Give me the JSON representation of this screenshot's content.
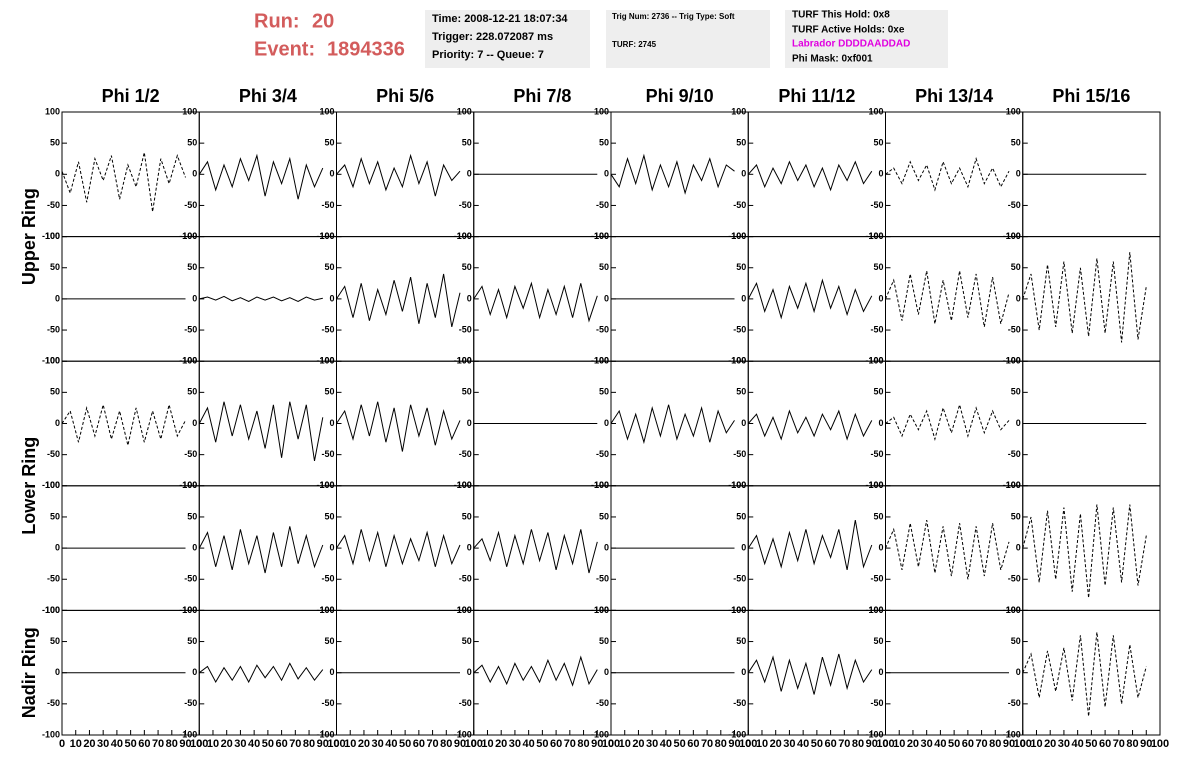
{
  "header": {
    "run_label": "Run:",
    "run": "20",
    "event_label": "Event:",
    "event": "1894336",
    "info_1": [
      "Time: 2008-12-21 18:07:34",
      "Trigger: 228.072087 ms",
      "Priority: 7 -- Queue: 7"
    ],
    "info_2": [
      "Trig Num: 2736 -- Trig Type: Soft",
      "TURF: 2745"
    ],
    "info_3": [
      "TURF This Hold: 0x8",
      "TURF Active Holds: 0xe",
      "Labrador DDDDAADDAD",
      "Phi Mask: 0xf001"
    ]
  },
  "chart_data": {
    "type": "waveform-grid",
    "columns": [
      "Phi 1/2",
      "Phi 3/4",
      "Phi 5/6",
      "Phi 7/8",
      "Phi 9/10",
      "Phi 11/12",
      "Phi 13/14",
      "Phi 15/16"
    ],
    "ring_labels": [
      "Upper Ring",
      "Lower Ring",
      "Nadir Ring"
    ],
    "xlim": [
      0,
      100
    ],
    "ylim": [
      -100,
      100
    ],
    "xticks": [
      0,
      10,
      20,
      30,
      40,
      50,
      60,
      70,
      80,
      90,
      100
    ],
    "yticks": [
      -100,
      -50,
      0,
      50,
      100
    ],
    "x": [
      0,
      6,
      12,
      18,
      24,
      30,
      36,
      42,
      48,
      54,
      60,
      66,
      72,
      78,
      84,
      90
    ],
    "panels": [
      [
        {
          "dashed": true,
          "values": [
            5,
            -30,
            20,
            -45,
            25,
            -10,
            30,
            -40,
            15,
            -20,
            35,
            -60,
            25,
            -15,
            30,
            -5
          ]
        },
        {
          "dashed": false,
          "values": [
            0,
            20,
            -25,
            15,
            -20,
            25,
            -10,
            30,
            -35,
            20,
            -15,
            25,
            -40,
            15,
            -20,
            10
          ]
        },
        {
          "dashed": false,
          "values": [
            0,
            15,
            -20,
            25,
            -15,
            20,
            -25,
            10,
            -20,
            30,
            -15,
            20,
            -35,
            15,
            -10,
            5
          ]
        },
        {
          "dashed": false,
          "values": [
            0,
            0,
            0,
            0,
            0,
            0,
            0,
            0,
            0,
            0,
            0,
            0,
            0,
            0,
            0,
            0
          ]
        },
        {
          "dashed": false,
          "values": [
            0,
            -20,
            25,
            -15,
            30,
            -25,
            15,
            -20,
            20,
            -30,
            15,
            -10,
            25,
            -20,
            15,
            5
          ]
        },
        {
          "dashed": false,
          "values": [
            0,
            15,
            -20,
            10,
            -15,
            20,
            -10,
            15,
            -20,
            10,
            -25,
            15,
            -10,
            20,
            -15,
            5
          ]
        },
        {
          "dashed": true,
          "values": [
            0,
            10,
            -15,
            20,
            -10,
            15,
            -25,
            20,
            -15,
            10,
            -20,
            25,
            -15,
            10,
            -20,
            5
          ]
        },
        {
          "dashed": false,
          "values": [
            0,
            0,
            0,
            0,
            0,
            0,
            0,
            0,
            0,
            0,
            0,
            0,
            0,
            0,
            0,
            0
          ]
        }
      ],
      [
        {
          "dashed": false,
          "values": [
            0,
            0,
            0,
            0,
            0,
            0,
            0,
            0,
            0,
            0,
            0,
            0,
            0,
            0,
            0,
            0
          ]
        },
        {
          "dashed": false,
          "values": [
            0,
            3,
            -2,
            4,
            -3,
            2,
            -4,
            3,
            -2,
            3,
            -3,
            2,
            -4,
            3,
            -2,
            1
          ]
        },
        {
          "dashed": false,
          "values": [
            0,
            20,
            -30,
            25,
            -35,
            15,
            -25,
            30,
            -20,
            35,
            -40,
            25,
            -30,
            40,
            -45,
            10
          ]
        },
        {
          "dashed": false,
          "values": [
            0,
            20,
            -25,
            15,
            -30,
            20,
            -15,
            25,
            -30,
            15,
            -25,
            20,
            -30,
            25,
            -35,
            5
          ]
        },
        {
          "dashed": false,
          "values": [
            0,
            0,
            0,
            0,
            0,
            0,
            0,
            0,
            0,
            0,
            0,
            0,
            0,
            0,
            0,
            0
          ]
        },
        {
          "dashed": false,
          "values": [
            0,
            25,
            -20,
            15,
            -30,
            20,
            -15,
            25,
            -20,
            30,
            -15,
            20,
            -25,
            15,
            -20,
            5
          ]
        },
        {
          "dashed": true,
          "values": [
            0,
            30,
            -35,
            40,
            -25,
            45,
            -40,
            30,
            -35,
            45,
            -30,
            40,
            -45,
            35,
            -40,
            10
          ]
        },
        {
          "dashed": true,
          "values": [
            0,
            40,
            -50,
            55,
            -45,
            60,
            -55,
            50,
            -60,
            65,
            -55,
            60,
            -70,
            75,
            -65,
            20
          ]
        }
      ],
      [
        {
          "dashed": true,
          "values": [
            0,
            20,
            -30,
            25,
            -20,
            30,
            -25,
            20,
            -35,
            25,
            -30,
            20,
            -25,
            30,
            -20,
            5
          ]
        },
        {
          "dashed": false,
          "values": [
            0,
            25,
            -30,
            35,
            -20,
            30,
            -25,
            20,
            -40,
            30,
            -55,
            35,
            -25,
            30,
            -60,
            10
          ]
        },
        {
          "dashed": false,
          "values": [
            0,
            20,
            -25,
            30,
            -20,
            35,
            -30,
            25,
            -45,
            30,
            -20,
            25,
            -35,
            20,
            -25,
            5
          ]
        },
        {
          "dashed": false,
          "values": [
            0,
            0,
            0,
            0,
            0,
            0,
            0,
            0,
            0,
            0,
            0,
            0,
            0,
            0,
            0,
            0
          ]
        },
        {
          "dashed": false,
          "values": [
            0,
            20,
            -25,
            15,
            -30,
            25,
            -20,
            30,
            -25,
            15,
            -20,
            25,
            -30,
            20,
            -15,
            5
          ]
        },
        {
          "dashed": false,
          "values": [
            0,
            15,
            -20,
            10,
            -25,
            20,
            -15,
            10,
            -20,
            15,
            -10,
            20,
            -25,
            15,
            -20,
            5
          ]
        },
        {
          "dashed": true,
          "values": [
            0,
            10,
            -20,
            15,
            -10,
            20,
            -25,
            25,
            -15,
            30,
            -20,
            25,
            -15,
            20,
            -10,
            5
          ]
        },
        {
          "dashed": false,
          "values": [
            0,
            0,
            0,
            0,
            0,
            0,
            0,
            0,
            0,
            0,
            0,
            0,
            0,
            0,
            0,
            0
          ]
        }
      ],
      [
        {
          "dashed": false,
          "values": [
            0,
            0,
            0,
            0,
            0,
            0,
            0,
            0,
            0,
            0,
            0,
            0,
            0,
            0,
            0,
            0
          ]
        },
        {
          "dashed": false,
          "values": [
            0,
            25,
            -30,
            20,
            -35,
            30,
            -25,
            20,
            -40,
            25,
            -30,
            35,
            -25,
            20,
            -30,
            5
          ]
        },
        {
          "dashed": false,
          "values": [
            0,
            20,
            -25,
            30,
            -20,
            25,
            -30,
            20,
            -25,
            15,
            -20,
            25,
            -30,
            20,
            -25,
            5
          ]
        },
        {
          "dashed": false,
          "values": [
            0,
            15,
            -20,
            25,
            -30,
            20,
            -25,
            30,
            -20,
            25,
            -35,
            20,
            -25,
            30,
            -40,
            10
          ]
        },
        {
          "dashed": false,
          "values": [
            0,
            0,
            0,
            0,
            0,
            0,
            0,
            0,
            0,
            0,
            0,
            0,
            0,
            0,
            0,
            0
          ]
        },
        {
          "dashed": false,
          "values": [
            0,
            20,
            -25,
            15,
            -30,
            25,
            -20,
            30,
            -25,
            20,
            -15,
            30,
            -35,
            45,
            -30,
            5
          ]
        },
        {
          "dashed": true,
          "values": [
            0,
            30,
            -35,
            40,
            -30,
            45,
            -40,
            35,
            -45,
            40,
            -50,
            35,
            -45,
            40,
            -35,
            10
          ]
        },
        {
          "dashed": true,
          "values": [
            0,
            50,
            -55,
            60,
            -50,
            65,
            -70,
            55,
            -80,
            70,
            -60,
            65,
            -55,
            70,
            -60,
            20
          ]
        }
      ],
      [
        {
          "dashed": false,
          "values": [
            0,
            0,
            0,
            0,
            0,
            0,
            0,
            0,
            0,
            0,
            0,
            0,
            0,
            0,
            0,
            0
          ]
        },
        {
          "dashed": false,
          "values": [
            0,
            10,
            -15,
            8,
            -12,
            10,
            -15,
            12,
            -8,
            10,
            -12,
            15,
            -10,
            8,
            -12,
            5
          ]
        },
        {
          "dashed": false,
          "values": [
            0,
            0,
            0,
            0,
            0,
            0,
            0,
            0,
            0,
            0,
            0,
            0,
            0,
            0,
            0,
            0
          ]
        },
        {
          "dashed": false,
          "values": [
            0,
            12,
            -15,
            10,
            -18,
            15,
            -12,
            10,
            -15,
            20,
            -12,
            15,
            -20,
            25,
            -18,
            5
          ]
        },
        {
          "dashed": false,
          "values": [
            0,
            0,
            0,
            0,
            0,
            0,
            0,
            0,
            0,
            0,
            0,
            0,
            0,
            0,
            0,
            0
          ]
        },
        {
          "dashed": false,
          "values": [
            0,
            20,
            -15,
            25,
            -30,
            20,
            -25,
            15,
            -35,
            25,
            -20,
            30,
            -25,
            20,
            -15,
            5
          ]
        },
        {
          "dashed": false,
          "values": [
            0,
            0,
            0,
            0,
            0,
            0,
            0,
            0,
            0,
            0,
            0,
            0,
            0,
            0,
            0,
            0
          ]
        },
        {
          "dashed": true,
          "values": [
            0,
            30,
            -40,
            35,
            -30,
            40,
            -45,
            60,
            -70,
            65,
            -55,
            60,
            -50,
            45,
            -40,
            10
          ]
        }
      ]
    ]
  }
}
